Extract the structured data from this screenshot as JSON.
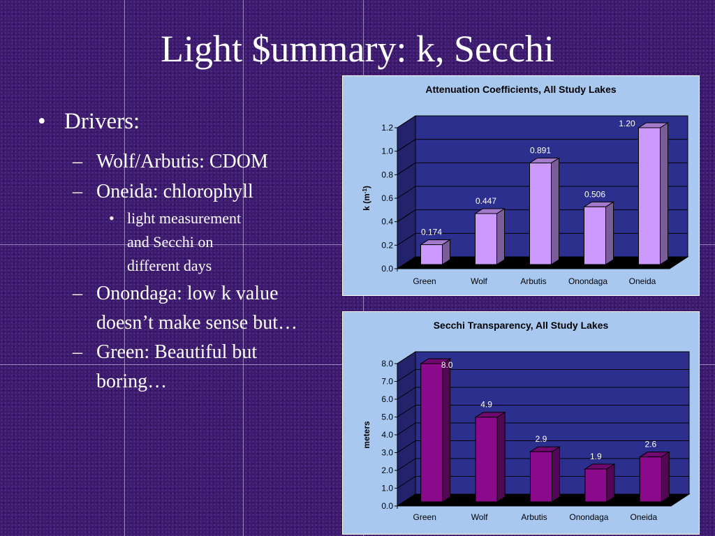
{
  "slide": {
    "title": "Light $ummary: k, Secchi",
    "bullets": {
      "drivers": "Drivers:",
      "wolf_arbutis": "Wolf/Arbutis: CDOM",
      "oneida": "Oneida: chlorophyll",
      "light_measurement": "light measurement and Secchi on different days",
      "onondaga": "Onondaga: low k value doesn’t make sense but…",
      "green": "Green: Beautiful but boring…"
    }
  },
  "colors": {
    "background": "#3c1a6e",
    "plot_area": "#2d2f8f",
    "chart_box": "#a8c8f0",
    "bar_k": "#cc99ff",
    "bar_secchi": "#8b0a8b"
  },
  "chart_data": [
    {
      "type": "bar",
      "title": "Attenuation Coefficients, All Study Lakes",
      "xlabel": "",
      "ylabel": "k (m",
      "ylabel_sup": "-1",
      "ylabel_end": ")",
      "categories": [
        "Green",
        "Wolf",
        "Arbutis",
        "Onondaga",
        "Oneida"
      ],
      "values": [
        0.174,
        0.447,
        0.891,
        0.506,
        1.2
      ],
      "value_labels": [
        "0.174",
        "0.447",
        "0.891",
        "0.506",
        "1.20"
      ],
      "ylim": [
        0,
        1.2
      ],
      "ticks": [
        "0.0",
        "0.2",
        "0.4",
        "0.6",
        "0.8",
        "1.0",
        "1.2"
      ],
      "grid": true
    },
    {
      "type": "bar",
      "title": "Secchi Transparency, All Study Lakes",
      "xlabel": "",
      "ylabel": "meters",
      "categories": [
        "Green",
        "Wolf",
        "Arbutis",
        "Onondaga",
        "Oneida"
      ],
      "values": [
        8.0,
        4.9,
        2.9,
        1.9,
        2.6
      ],
      "value_labels": [
        "8.0",
        "4.9",
        "2.9",
        "1.9",
        "2.6"
      ],
      "ylim": [
        0,
        8
      ],
      "ticks": [
        "0.0",
        "1.0",
        "2.0",
        "3.0",
        "4.0",
        "5.0",
        "6.0",
        "7.0",
        "8.0"
      ],
      "grid": true
    }
  ]
}
